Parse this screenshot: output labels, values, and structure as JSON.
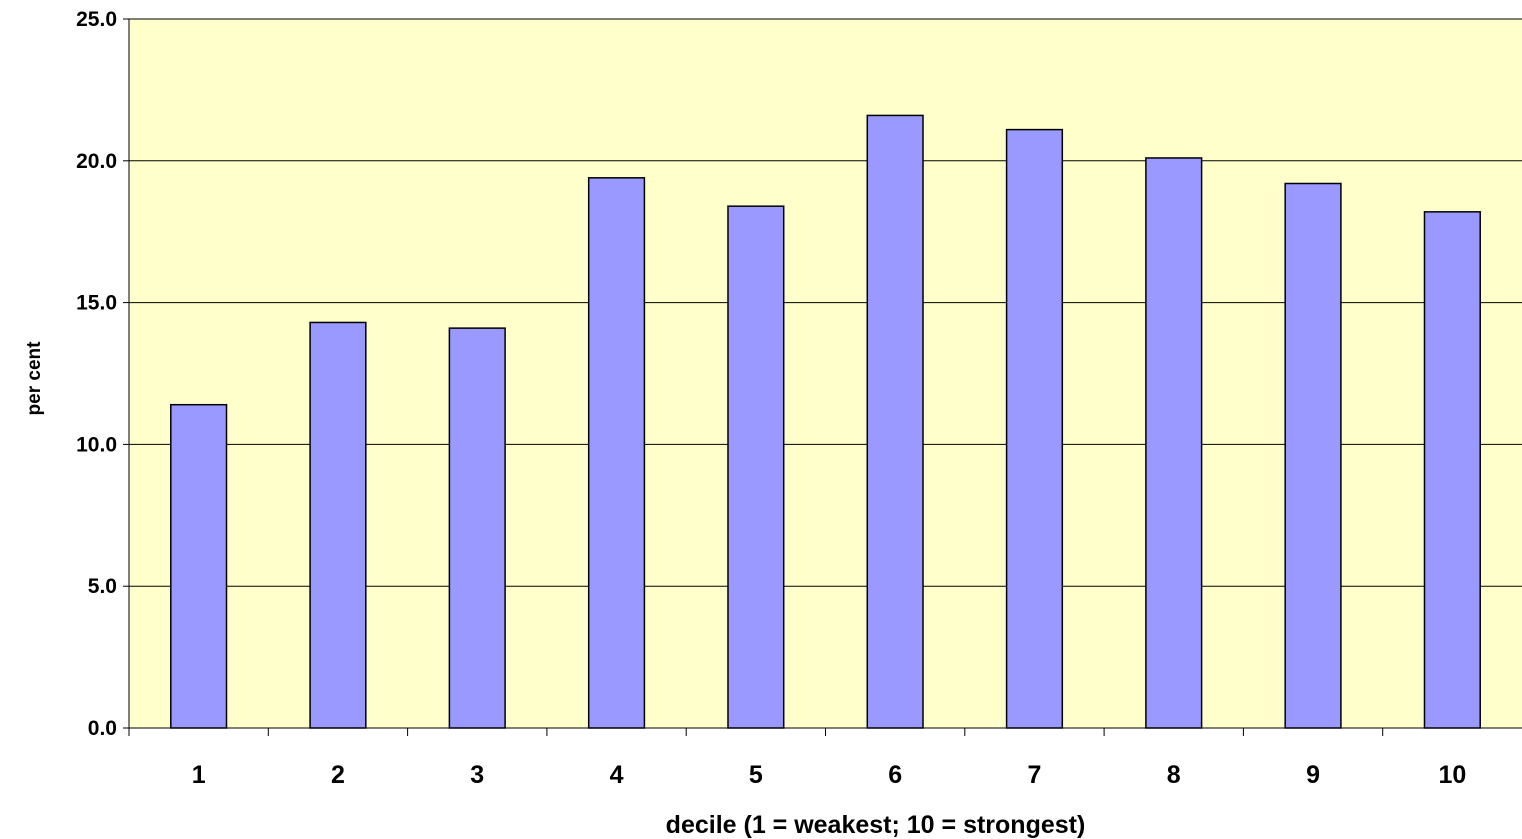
{
  "chart_data": {
    "type": "bar",
    "categories": [
      "1",
      "2",
      "3",
      "4",
      "5",
      "6",
      "7",
      "8",
      "9",
      "10"
    ],
    "values": [
      11.4,
      14.3,
      14.1,
      19.4,
      18.4,
      21.6,
      21.1,
      20.1,
      19.2,
      18.2
    ],
    "title": "",
    "xlabel": "decile (1 = weakest; 10 = strongest)",
    "ylabel": "per cent",
    "ylim": [
      0,
      25
    ],
    "yticks": [
      "0.0",
      "5.0",
      "10.0",
      "15.0",
      "20.0",
      "25.0"
    ],
    "grid": "horizontal",
    "legend": "none",
    "colors": {
      "plot_background": "#FFFFCC",
      "bar_fill": "#9999FF",
      "bar_stroke": "#000000",
      "gridline": "#000000"
    }
  }
}
